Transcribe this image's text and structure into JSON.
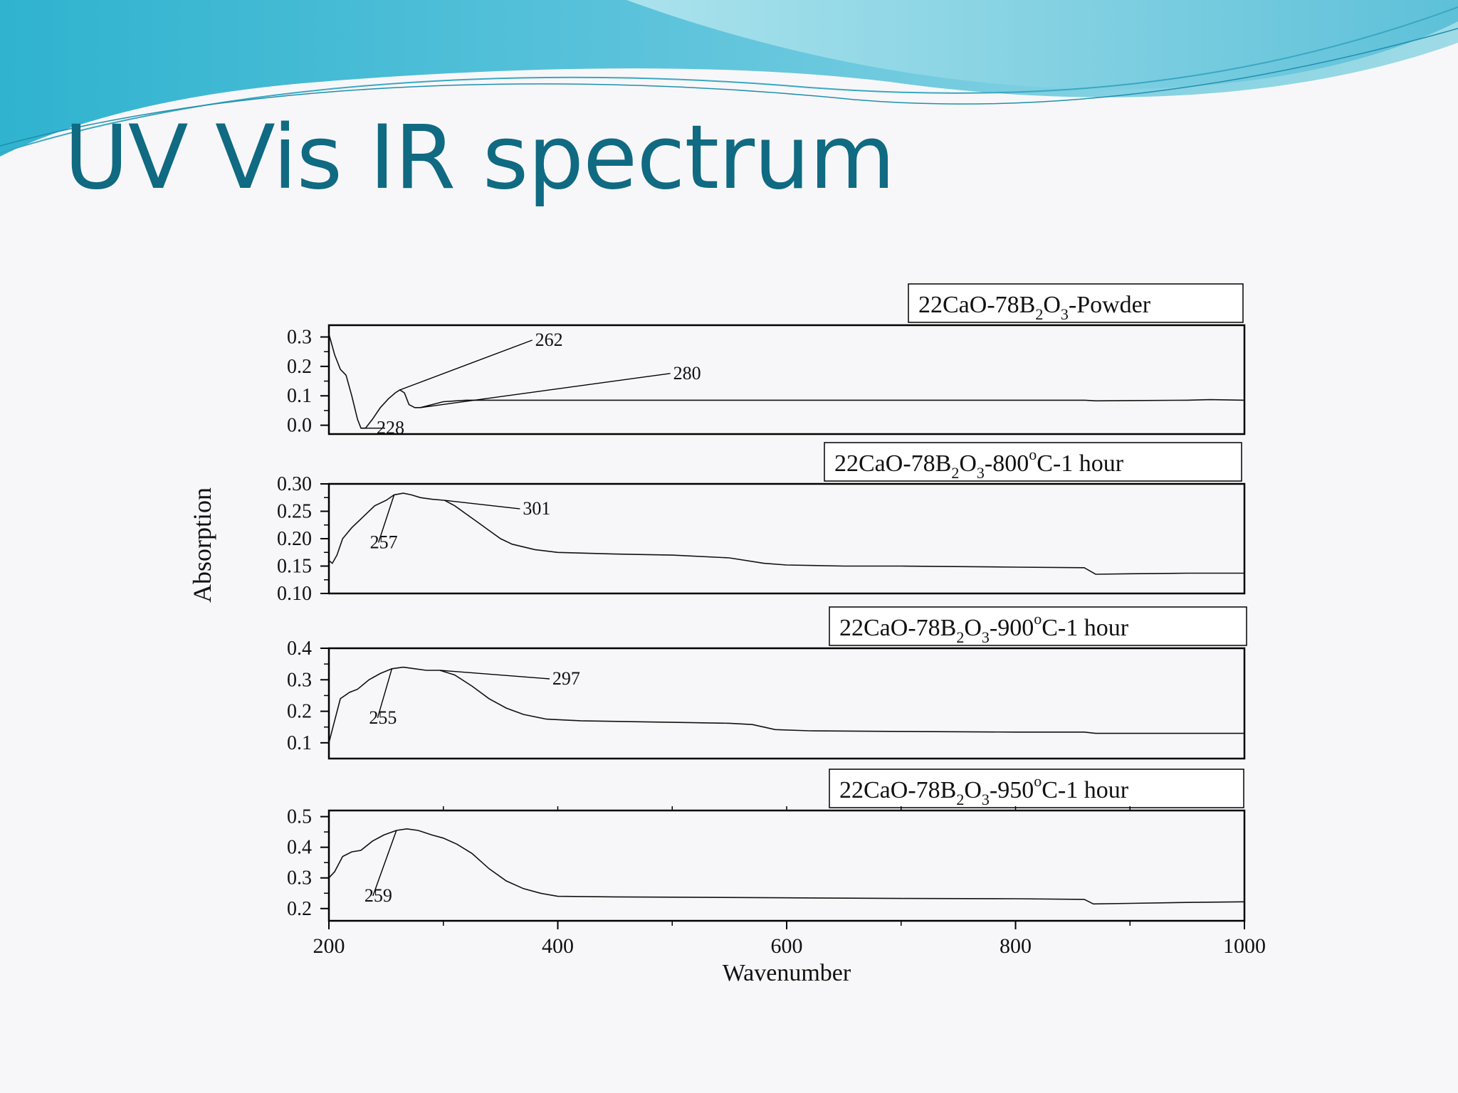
{
  "slide": {
    "title": "UV Vis IR spectrum",
    "colors": {
      "title": "#0f6a82",
      "wave_dark": "#3fa9c9",
      "wave_light": "#a7dde8",
      "background": "#f7f7f9"
    }
  },
  "chart_data": {
    "type": "line",
    "xlabel": "Wavenumber",
    "ylabel": "Absorption",
    "xlim": [
      200,
      1000
    ],
    "x_ticks": [
      200,
      400,
      600,
      800,
      1000
    ],
    "grid": false,
    "panels": [
      {
        "legend": {
          "formula": [
            "22CaO-78B",
            "2",
            "O",
            "3",
            "-Powder"
          ]
        },
        "ylim": [
          -0.03,
          0.34
        ],
        "y_ticks": [
          "0.0",
          "0.1",
          "0.2",
          "0.3"
        ],
        "series": [
          {
            "points": [
              [
                200,
                0.31
              ],
              [
                205,
                0.24
              ],
              [
                210,
                0.19
              ],
              [
                215,
                0.17
              ],
              [
                220,
                0.1
              ],
              [
                225,
                0.02
              ],
              [
                228,
                -0.01
              ],
              [
                232,
                -0.01
              ],
              [
                238,
                0.02
              ],
              [
                245,
                0.06
              ],
              [
                252,
                0.09
              ],
              [
                258,
                0.11
              ],
              [
                262,
                0.12
              ],
              [
                266,
                0.11
              ],
              [
                270,
                0.07
              ],
              [
                275,
                0.06
              ],
              [
                280,
                0.06
              ],
              [
                290,
                0.07
              ],
              [
                300,
                0.08
              ],
              [
                320,
                0.085
              ],
              [
                350,
                0.085
              ],
              [
                400,
                0.085
              ],
              [
                500,
                0.085
              ],
              [
                600,
                0.085
              ],
              [
                700,
                0.085
              ],
              [
                800,
                0.085
              ],
              [
                860,
                0.085
              ],
              [
                870,
                0.083
              ],
              [
                900,
                0.084
              ],
              [
                950,
                0.085
              ],
              [
                970,
                0.087
              ],
              [
                1000,
                0.085
              ]
            ]
          }
        ],
        "annotations": [
          {
            "label": "228",
            "x": 228,
            "y": -0.01
          },
          {
            "label": "262",
            "x": 262,
            "y": 0.12
          },
          {
            "label": "280",
            "x": 280,
            "y": 0.06
          }
        ]
      },
      {
        "legend": {
          "formula": [
            "22CaO-78B",
            "2",
            "O",
            "3",
            "-800",
            "o",
            "C-1 hour"
          ]
        },
        "ylim": [
          0.1,
          0.3
        ],
        "y_ticks": [
          "0.10",
          "0.15",
          "0.20",
          "0.25",
          "0.30"
        ],
        "series": [
          {
            "points": [
              [
                200,
                0.16
              ],
              [
                203,
                0.155
              ],
              [
                207,
                0.17
              ],
              [
                212,
                0.2
              ],
              [
                220,
                0.22
              ],
              [
                230,
                0.24
              ],
              [
                240,
                0.26
              ],
              [
                250,
                0.27
              ],
              [
                257,
                0.28
              ],
              [
                265,
                0.283
              ],
              [
                272,
                0.28
              ],
              [
                280,
                0.275
              ],
              [
                290,
                0.272
              ],
              [
                301,
                0.27
              ],
              [
                310,
                0.26
              ],
              [
                320,
                0.245
              ],
              [
                330,
                0.23
              ],
              [
                340,
                0.215
              ],
              [
                350,
                0.2
              ],
              [
                360,
                0.19
              ],
              [
                380,
                0.18
              ],
              [
                400,
                0.175
              ],
              [
                450,
                0.172
              ],
              [
                500,
                0.17
              ],
              [
                550,
                0.165
              ],
              [
                580,
                0.155
              ],
              [
                600,
                0.152
              ],
              [
                650,
                0.15
              ],
              [
                700,
                0.15
              ],
              [
                800,
                0.148
              ],
              [
                860,
                0.147
              ],
              [
                870,
                0.135
              ],
              [
                900,
                0.136
              ],
              [
                950,
                0.137
              ],
              [
                1000,
                0.137
              ]
            ]
          }
        ],
        "annotations": [
          {
            "label": "257",
            "x": 257,
            "y": 0.28
          },
          {
            "label": "301",
            "x": 301,
            "y": 0.27
          }
        ]
      },
      {
        "legend": {
          "formula": [
            "22CaO-78B",
            "2",
            "O",
            "3",
            "-900",
            "o",
            "C-1 hour"
          ]
        },
        "ylim": [
          0.05,
          0.4
        ],
        "y_ticks": [
          "0.1",
          "0.2",
          "0.3",
          "0.4"
        ],
        "series": [
          {
            "points": [
              [
                200,
                0.1
              ],
              [
                205,
                0.17
              ],
              [
                210,
                0.24
              ],
              [
                218,
                0.26
              ],
              [
                225,
                0.27
              ],
              [
                235,
                0.3
              ],
              [
                245,
                0.32
              ],
              [
                255,
                0.335
              ],
              [
                265,
                0.34
              ],
              [
                275,
                0.335
              ],
              [
                285,
                0.33
              ],
              [
                297,
                0.33
              ],
              [
                310,
                0.315
              ],
              [
                325,
                0.28
              ],
              [
                340,
                0.24
              ],
              [
                355,
                0.21
              ],
              [
                370,
                0.19
              ],
              [
                390,
                0.175
              ],
              [
                420,
                0.17
              ],
              [
                500,
                0.165
              ],
              [
                550,
                0.162
              ],
              [
                570,
                0.158
              ],
              [
                590,
                0.142
              ],
              [
                620,
                0.138
              ],
              [
                700,
                0.136
              ],
              [
                800,
                0.134
              ],
              [
                860,
                0.134
              ],
              [
                870,
                0.13
              ],
              [
                900,
                0.13
              ],
              [
                1000,
                0.13
              ]
            ]
          }
        ],
        "annotations": [
          {
            "label": "255",
            "x": 255,
            "y": 0.335
          },
          {
            "label": "297",
            "x": 297,
            "y": 0.33
          }
        ]
      },
      {
        "legend": {
          "formula": [
            "22CaO-78B",
            "2",
            "O",
            "3",
            "-950",
            "o",
            "C-1 hour"
          ]
        },
        "ylim": [
          0.16,
          0.52
        ],
        "y_ticks": [
          "0.2",
          "0.3",
          "0.4",
          "0.5"
        ],
        "series": [
          {
            "points": [
              [
                200,
                0.3
              ],
              [
                205,
                0.32
              ],
              [
                212,
                0.37
              ],
              [
                220,
                0.385
              ],
              [
                228,
                0.39
              ],
              [
                238,
                0.42
              ],
              [
                248,
                0.44
              ],
              [
                259,
                0.455
              ],
              [
                268,
                0.46
              ],
              [
                278,
                0.455
              ],
              [
                290,
                0.44
              ],
              [
                300,
                0.43
              ],
              [
                312,
                0.41
              ],
              [
                325,
                0.38
              ],
              [
                340,
                0.33
              ],
              [
                355,
                0.29
              ],
              [
                370,
                0.265
              ],
              [
                385,
                0.25
              ],
              [
                400,
                0.24
              ],
              [
                450,
                0.238
              ],
              [
                500,
                0.237
              ],
              [
                600,
                0.235
              ],
              [
                700,
                0.233
              ],
              [
                800,
                0.232
              ],
              [
                860,
                0.23
              ],
              [
                868,
                0.215
              ],
              [
                900,
                0.217
              ],
              [
                950,
                0.22
              ],
              [
                1000,
                0.222
              ]
            ]
          }
        ],
        "annotations": [
          {
            "label": "259",
            "x": 259,
            "y": 0.455
          }
        ]
      }
    ]
  }
}
